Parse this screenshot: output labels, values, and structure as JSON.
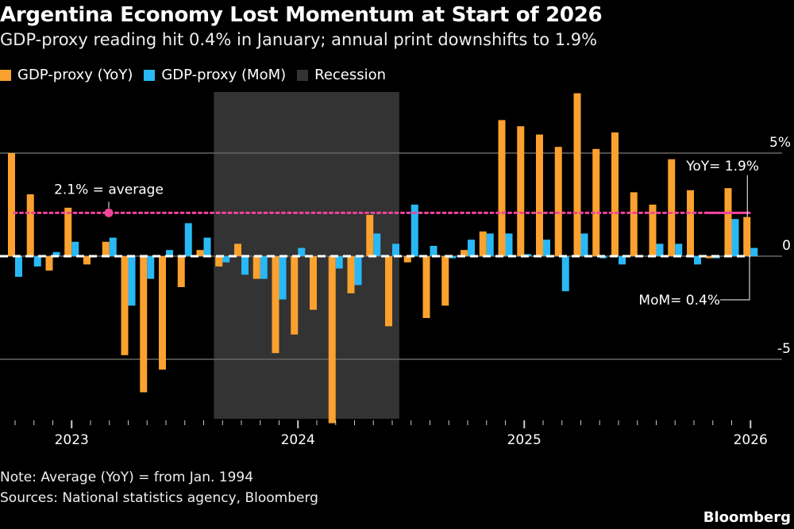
{
  "title": "Argentina Economy Lost Momentum at Start of 2026",
  "subtitle": "GDP-proxy reading hit 0.4% in January; annual print downshifts to 1.9%",
  "colors": {
    "yoy": "#fba12f",
    "mom": "#29b8f5",
    "recession": "#333333",
    "average": "#f0449b"
  },
  "notes": [
    "Note: Average (YoY) = from Jan. 1994",
    "Sources: National statistics agency, Bloomberg"
  ],
  "logo": "Bloomberg",
  "chart_data": {
    "type": "bar",
    "legend": [
      {
        "name": "GDP-proxy (YoY)"
      },
      {
        "name": "GDP-proxy (MoM)"
      },
      {
        "name": "Recession"
      }
    ],
    "legend_placement": "top-left",
    "categories": [
      "2022-10",
      "2022-11",
      "2022-12",
      "2023-01",
      "2023-02",
      "2023-03",
      "2023-04",
      "2023-05",
      "2023-06",
      "2023-07",
      "2023-08",
      "2023-09",
      "2023-10",
      "2023-11",
      "2023-12",
      "2024-01",
      "2024-02",
      "2024-03",
      "2024-04",
      "2024-05",
      "2024-06",
      "2024-07",
      "2024-08",
      "2024-09",
      "2024-10",
      "2024-11",
      "2024-12",
      "2025-01",
      "2025-02",
      "2025-03",
      "2025-04",
      "2025-05",
      "2025-06",
      "2025-07",
      "2025-08",
      "2025-09",
      "2025-10",
      "2025-11",
      "2025-12",
      "2026-01"
    ],
    "series": [
      {
        "name": "GDP-proxy (YoY)",
        "values": [
          5.0,
          3.0,
          -0.7,
          2.35,
          -0.4,
          0.7,
          -4.8,
          -6.6,
          -5.5,
          -1.5,
          0.3,
          -0.5,
          0.6,
          -1.1,
          -4.7,
          -3.8,
          -2.6,
          -8.1,
          -1.8,
          2.0,
          -3.4,
          -0.3,
          -3.0,
          -2.4,
          0.3,
          1.2,
          6.6,
          6.3,
          5.9,
          5.3,
          7.9,
          5.2,
          6.0,
          3.1,
          2.5,
          4.7,
          3.2,
          -0.1,
          3.3,
          1.9
        ]
      },
      {
        "name": "GDP-proxy (MoM)",
        "values": [
          -1.0,
          -0.5,
          0.2,
          0.7,
          0.0,
          0.9,
          -2.4,
          -1.1,
          0.3,
          1.6,
          0.9,
          -0.3,
          -0.9,
          -1.1,
          -2.1,
          0.4,
          0.0,
          -0.6,
          -1.4,
          1.1,
          0.6,
          2.5,
          0.5,
          -0.1,
          0.8,
          1.1,
          1.1,
          0.1,
          0.8,
          -1.7,
          1.1,
          -0.1,
          -0.4,
          0.0,
          0.6,
          0.6,
          -0.4,
          -0.1,
          1.8,
          0.4
        ]
      }
    ],
    "recession": {
      "start": "2023-09",
      "end": "2024-06"
    },
    "average": {
      "value": 2.1,
      "label": "2.1% = average"
    },
    "annotations": [
      {
        "text": "YoY= 1.9%",
        "x": "2026-01"
      },
      {
        "text": "MoM= 0.4%",
        "x": "2026-01"
      }
    ],
    "x_tick_labels": [
      "2023",
      "2024",
      "2025",
      "2026"
    ],
    "y_ticks": [
      {
        "value": 5,
        "label": "5%"
      },
      {
        "value": 0,
        "label": "0"
      },
      {
        "value": -5,
        "label": "-5"
      }
    ],
    "ylim": [
      -8.1,
      8.0
    ],
    "grid": true
  }
}
